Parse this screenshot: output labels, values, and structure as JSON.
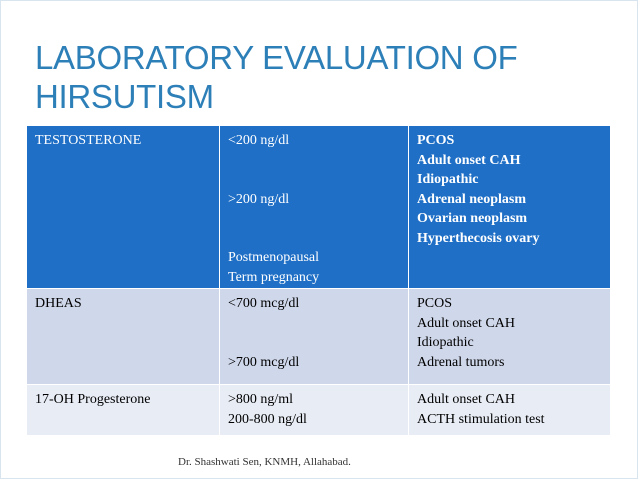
{
  "title": "LABORATORY EVALUATION OF HIRSUTISM",
  "table": {
    "rows": [
      [
        [
          "TESTOSTERONE"
        ],
        [
          "<200 ng/dl",
          ">200 ng/dl",
          "Postmenopausal",
          "Term pregnancy"
        ],
        [
          "PCOS",
          "Adult onset CAH",
          "Idiopathic",
          "Adrenal neoplasm",
          "Ovarian neoplasm",
          "Hyperthecosis ovary"
        ]
      ],
      [
        [
          "DHEAS"
        ],
        [
          "<700 mcg/dl",
          ">700 mcg/dl"
        ],
        [
          "PCOS",
          "Adult onset CAH",
          "Idiopathic",
          "Adrenal tumors"
        ]
      ],
      [
        [
          "17-OH Progesterone"
        ],
        [
          ">800 ng/ml",
          "200-800 ng/dl"
        ],
        [
          "Adult onset CAH",
          "ACTH stimulation test"
        ]
      ]
    ]
  },
  "footer": "Dr. Shashwati Sen, KNMH, Allahabad."
}
